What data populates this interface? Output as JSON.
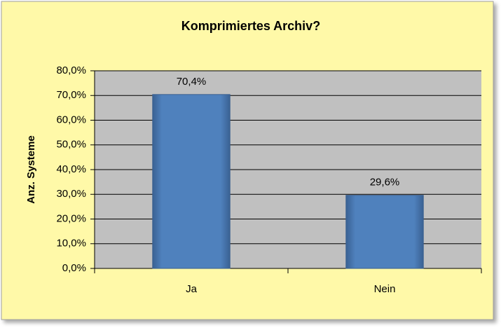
{
  "chart_data": {
    "type": "bar",
    "title": "Komprimiertes Archiv?",
    "y_label": "Anz. Systeme",
    "categories": [
      "Ja",
      "Nein"
    ],
    "values": [
      70.4,
      29.6
    ],
    "value_labels": [
      "70,4%",
      "29,6%"
    ],
    "color": "#4f81bd",
    "ylim": [
      0,
      80
    ],
    "yticks": [
      {
        "value": 0,
        "label": "0,0%"
      },
      {
        "value": 10,
        "label": "10,0%"
      },
      {
        "value": 20,
        "label": "20,0%"
      },
      {
        "value": 30,
        "label": "30,0%"
      },
      {
        "value": 40,
        "label": "40,0%"
      },
      {
        "value": 50,
        "label": "50,0%"
      },
      {
        "value": 60,
        "label": "60,0%"
      },
      {
        "value": 70,
        "label": "70,0%"
      },
      {
        "value": 80,
        "label": "80,0%"
      }
    ],
    "grid": true
  }
}
